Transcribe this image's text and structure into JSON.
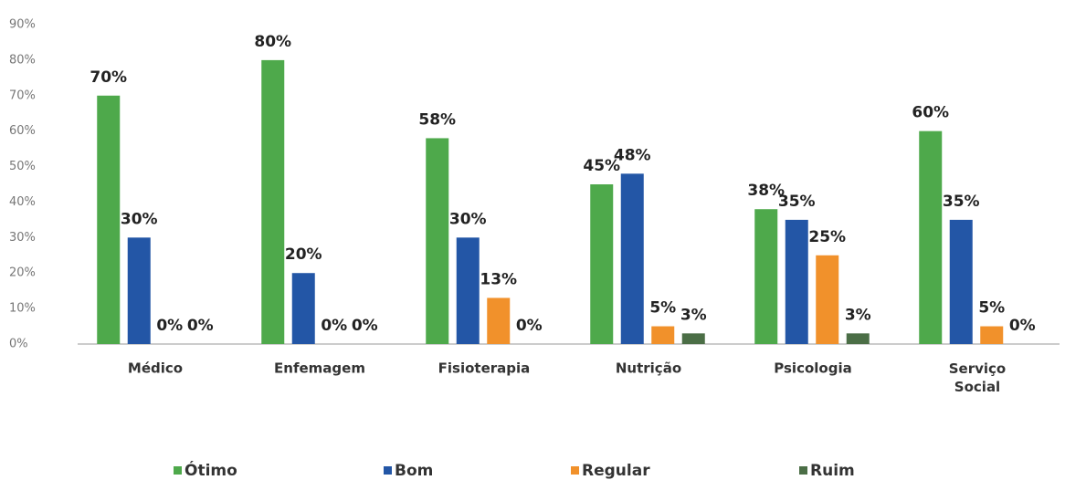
{
  "chart_data": {
    "type": "bar",
    "categories": [
      "Médico",
      "Enfemagem",
      "Fisioterapia",
      "Nutrição",
      "Psicologia",
      "Serviço Social"
    ],
    "series": [
      {
        "name": "Ótimo",
        "color": "#4ea94b",
        "values": [
          70,
          80,
          58,
          45,
          38,
          60
        ],
        "value_labels": [
          "70%",
          "80%",
          "58%",
          "45%",
          "38%",
          "60%"
        ]
      },
      {
        "name": "Bom",
        "color": "#2356a6",
        "values": [
          30,
          20,
          30,
          48,
          35,
          35
        ],
        "value_labels": [
          "30%",
          "20%",
          "30%",
          "48%",
          "35%",
          "35%"
        ]
      },
      {
        "name": "Regular",
        "color": "#f1912b",
        "values": [
          0,
          0,
          13,
          5,
          25,
          5
        ],
        "value_labels": [
          "0%",
          "0%",
          "13%",
          "5%",
          "25%",
          "5%"
        ]
      },
      {
        "name": "Ruim",
        "color": "#4b6e46",
        "values": [
          0,
          0,
          0,
          3,
          3,
          0
        ],
        "value_labels": [
          "0%",
          "0%",
          "0%",
          "3%",
          "3%",
          "0%"
        ]
      }
    ],
    "ylim": [
      0,
      90
    ],
    "yticks": [
      {
        "value": 0,
        "label": "0%"
      },
      {
        "value": 10,
        "label": "10%"
      },
      {
        "value": 20,
        "label": "20%"
      },
      {
        "value": 30,
        "label": "30%"
      },
      {
        "value": 40,
        "label": "40%"
      },
      {
        "value": 50,
        "label": "50%"
      },
      {
        "value": 60,
        "label": "60%"
      },
      {
        "value": 70,
        "label": "70%"
      },
      {
        "value": 80,
        "label": "80%"
      },
      {
        "value": 90,
        "label": "90%"
      }
    ],
    "grid": false,
    "legend": "bottom"
  }
}
